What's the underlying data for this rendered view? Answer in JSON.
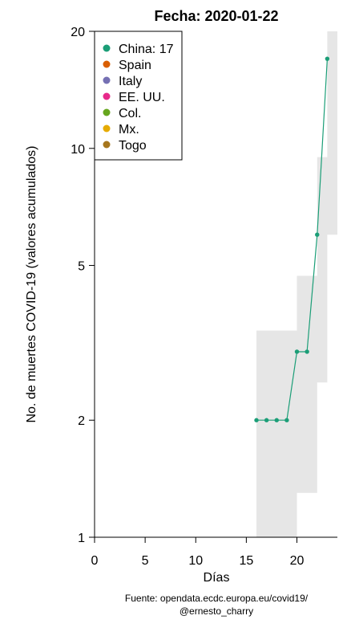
{
  "chart_data": {
    "type": "line",
    "title": "Fecha: 2020-01-22",
    "xlabel": "Días",
    "ylabel": "No. de muertes COVID-19 (valores acumulados)",
    "y_scale": "log",
    "xlim": [
      0,
      24
    ],
    "ylim": [
      1,
      20
    ],
    "x_ticks": [
      0,
      5,
      10,
      15,
      20
    ],
    "y_ticks": [
      1,
      2,
      5,
      10,
      20
    ],
    "grid": false,
    "legend_position": "top-left",
    "legend": [
      {
        "label": "China: 17",
        "color": "#1b9e77"
      },
      {
        "label": "Spain",
        "color": "#d95f02"
      },
      {
        "label": "Italy",
        "color": "#7570b3"
      },
      {
        "label": "EE. UU.",
        "color": "#e7298a"
      },
      {
        "label": "Col.",
        "color": "#66a61e"
      },
      {
        "label": "Mx.",
        "color": "#e6ab02"
      },
      {
        "label": "Togo",
        "color": "#a6761d"
      }
    ],
    "series": [
      {
        "name": "China",
        "color": "#1b9e77",
        "x": [
          16,
          17,
          18,
          19,
          20,
          21,
          22,
          23
        ],
        "y": [
          2,
          2,
          2,
          2,
          3,
          3,
          6,
          17
        ]
      }
    ],
    "confidence_band": {
      "color": "#e6e6e6",
      "x": [
        16,
        17,
        18,
        19,
        20,
        21,
        22,
        23
      ],
      "upper": [
        3.4,
        3.4,
        3.4,
        3.4,
        4.7,
        4.7,
        9.5,
        20
      ],
      "lower": [
        1,
        1,
        1,
        1,
        1.3,
        1.3,
        2.5,
        6
      ]
    }
  },
  "caption": {
    "line1": "Fuente: opendata.ecdc.europa.eu/covid19/",
    "line2": "@ernesto_charry"
  }
}
